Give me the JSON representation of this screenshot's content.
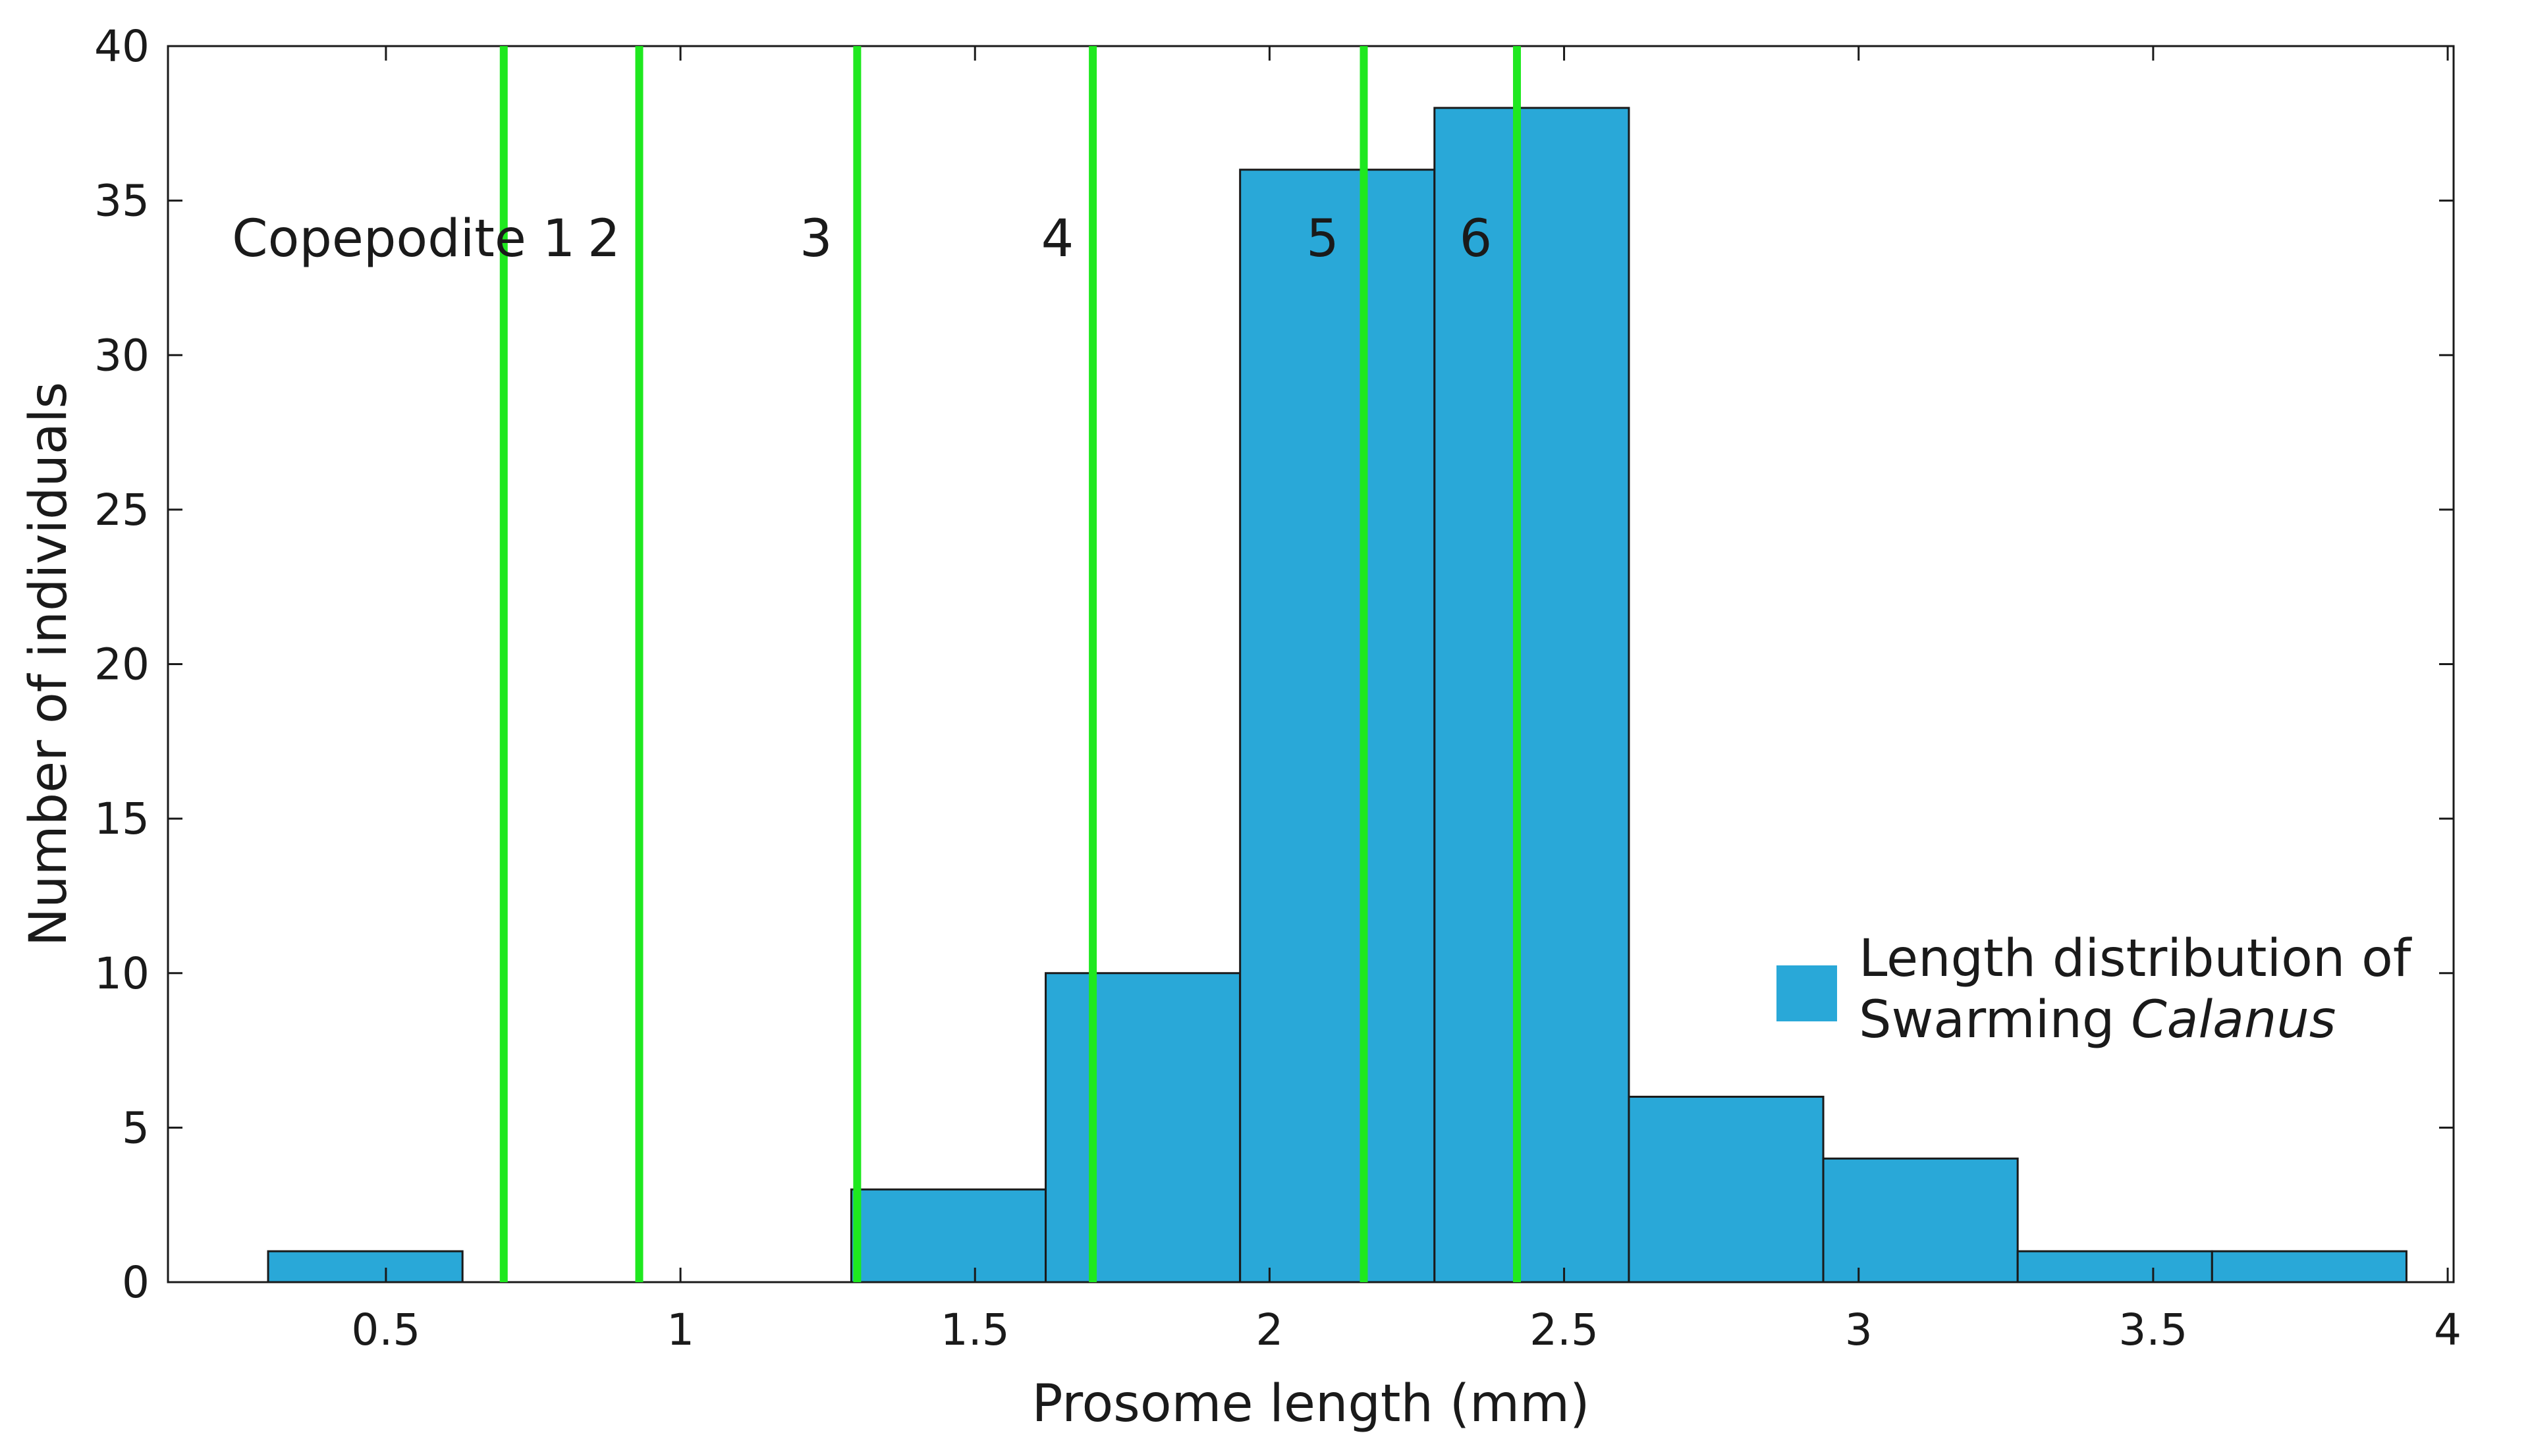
{
  "chart_data": {
    "type": "bar",
    "title": "",
    "xlabel": "Prosome length (mm)",
    "ylabel": "Number of individuals",
    "xlim": [
      0.13,
      4.01
    ],
    "ylim": [
      0,
      40
    ],
    "xticks": [
      0.5,
      1,
      1.5,
      2,
      2.5,
      3,
      3.5,
      4
    ],
    "xtick_labels": [
      "0.5",
      "1",
      "1.5",
      "2",
      "2.5",
      "3",
      "3.5",
      "4"
    ],
    "yticks": [
      0,
      5,
      10,
      15,
      20,
      25,
      30,
      35,
      40
    ],
    "ytick_labels": [
      "0",
      "5",
      "10",
      "15",
      "20",
      "25",
      "30",
      "35",
      "40"
    ],
    "bar_color": "#29a8d8",
    "bins": [
      {
        "x0": 0.3,
        "x1": 0.63,
        "count": 1
      },
      {
        "x0": 0.63,
        "x1": 0.96,
        "count": 0
      },
      {
        "x0": 0.96,
        "x1": 1.29,
        "count": 0
      },
      {
        "x0": 1.29,
        "x1": 1.62,
        "count": 3
      },
      {
        "x0": 1.62,
        "x1": 1.95,
        "count": 10
      },
      {
        "x0": 1.95,
        "x1": 2.28,
        "count": 36
      },
      {
        "x0": 2.28,
        "x1": 2.61,
        "count": 38
      },
      {
        "x0": 2.61,
        "x1": 2.94,
        "count": 6
      },
      {
        "x0": 2.94,
        "x1": 3.27,
        "count": 4
      },
      {
        "x0": 3.27,
        "x1": 3.6,
        "count": 1
      },
      {
        "x0": 3.6,
        "x1": 3.93,
        "count": 1
      }
    ],
    "stage_line_color": "#1fe81f",
    "stage_boundaries": [
      0.7,
      0.93,
      1.3,
      1.7,
      2.16,
      2.42
    ],
    "stage_labels": [
      {
        "text": "Copepodite 1",
        "x": 0.53
      },
      {
        "text": "2",
        "x": 0.87
      },
      {
        "text": "3",
        "x": 1.23
      },
      {
        "text": "4",
        "x": 1.64
      },
      {
        "text": "5",
        "x": 2.09
      },
      {
        "text": "6",
        "x": 2.35
      }
    ],
    "stage_label_y": 33.2,
    "legend": {
      "position": "right-middle",
      "text_line1": "Length distribution of",
      "text_line2_prefix": "Swarming ",
      "text_line2_italic": "Calanus"
    }
  }
}
